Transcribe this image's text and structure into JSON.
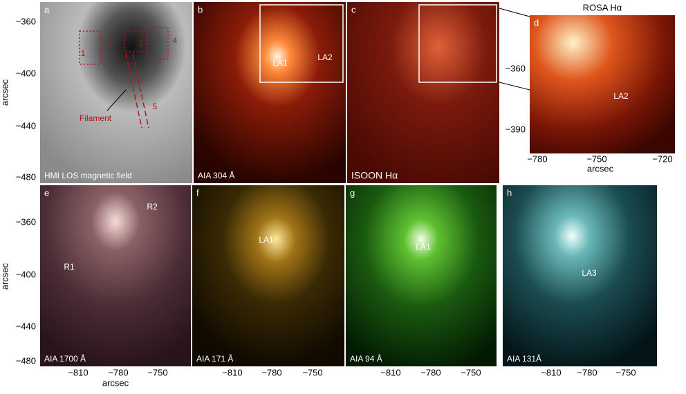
{
  "panels": [
    {
      "letter": "a",
      "caption": "HMI LOS magnetic field",
      "annotations": [
        "1",
        "2",
        "3",
        "4",
        "5",
        "Filament"
      ]
    },
    {
      "letter": "b",
      "caption": "AIA 304 Å",
      "annotations": [
        "LA1",
        "LA2"
      ]
    },
    {
      "letter": "c",
      "caption": "ISOON Hα",
      "annotations": []
    },
    {
      "letter": "d",
      "title": "ROSA Hα",
      "annotations": [
        "LA2"
      ]
    },
    {
      "letter": "e",
      "caption": "AIA 1700 Å",
      "annotations": [
        "R2",
        "R1"
      ]
    },
    {
      "letter": "f",
      "caption": "AIA 171 Å",
      "annotations": [
        "LA1"
      ]
    },
    {
      "letter": "g",
      "caption": "AIA 94 Å",
      "annotations": [
        "LA1"
      ]
    },
    {
      "letter": "h",
      "caption": "AIA 131Å",
      "annotations": [
        "LA3"
      ]
    }
  ],
  "axes": {
    "axis_label": "arcsec",
    "top_y_ticks": [
      "−360",
      "−400",
      "−440",
      "−480"
    ],
    "bottom_y_ticks": [
      "−360",
      "−400",
      "−440",
      "−480"
    ],
    "x_ticks": [
      "−810",
      "−780",
      "−750"
    ],
    "d_x_ticks": [
      "−780",
      "−750",
      "−720"
    ],
    "d_y_ticks": [
      "−360",
      "−390"
    ]
  }
}
